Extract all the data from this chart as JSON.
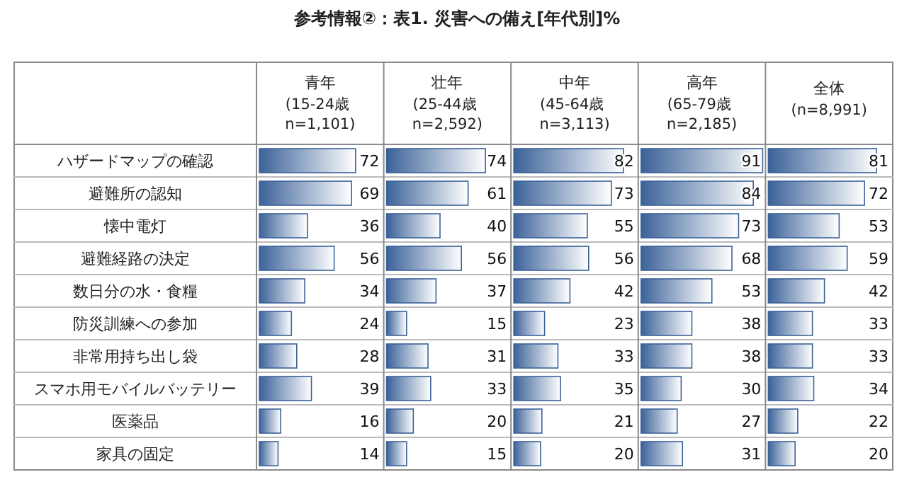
{
  "chart_data": [
    {
      "type": "bar",
      "orientation": "horizontal",
      "title": "青年",
      "subtitle": "(15-24歳 n=1,101)",
      "annotations": [
        "参考情報②：表1. 災害への備え[年代別]%"
      ],
      "categories": [
        "ハザードマップの確認",
        "避難所の認知",
        "懐中電灯",
        "避難経路の決定",
        "数日分の水・食糧",
        "防災訓練への参加",
        "非常用持ち出し袋",
        "スマホ用モバイルバッテリー",
        "医薬品",
        "家具の固定"
      ],
      "values": [
        72,
        69,
        36,
        56,
        34,
        24,
        28,
        39,
        16,
        14
      ],
      "color": "#3b6299",
      "xlim": [
        0,
        91
      ],
      "data_labels": true,
      "tick_labels": "y"
    },
    {
      "type": "bar",
      "orientation": "horizontal",
      "title": "壮年",
      "subtitle": "(25-44歳 n=2,592)",
      "values": [
        74,
        61,
        40,
        56,
        37,
        15,
        31,
        33,
        20,
        15
      ],
      "color": "#3b6299",
      "xlim": [
        0,
        91
      ],
      "data_labels": true,
      "tick_labels": false
    },
    {
      "type": "bar",
      "orientation": "horizontal",
      "title": "中年",
      "subtitle": "(45-64歳 n=3,113)",
      "values": [
        82,
        73,
        55,
        56,
        42,
        23,
        33,
        35,
        21,
        20
      ],
      "color": "#3b6299",
      "xlim": [
        0,
        91
      ],
      "data_labels": true,
      "tick_labels": false
    },
    {
      "type": "bar",
      "orientation": "horizontal",
      "title": "高年",
      "subtitle": "(65-79歳 n=2,185)",
      "values": [
        91,
        84,
        73,
        68,
        53,
        38,
        38,
        30,
        27,
        31
      ],
      "color": "#3b6299",
      "xlim": [
        0,
        91
      ],
      "data_labels": true,
      "tick_labels": false
    },
    {
      "type": "bar",
      "orientation": "horizontal",
      "title": "全体",
      "subtitle": "(n=8,991)",
      "values": [
        81,
        72,
        53,
        59,
        42,
        33,
        33,
        34,
        22,
        20
      ],
      "color": "#3b6299",
      "xlim": [
        0,
        91
      ],
      "data_labels": true,
      "tick_labels": false
    }
  ]
}
